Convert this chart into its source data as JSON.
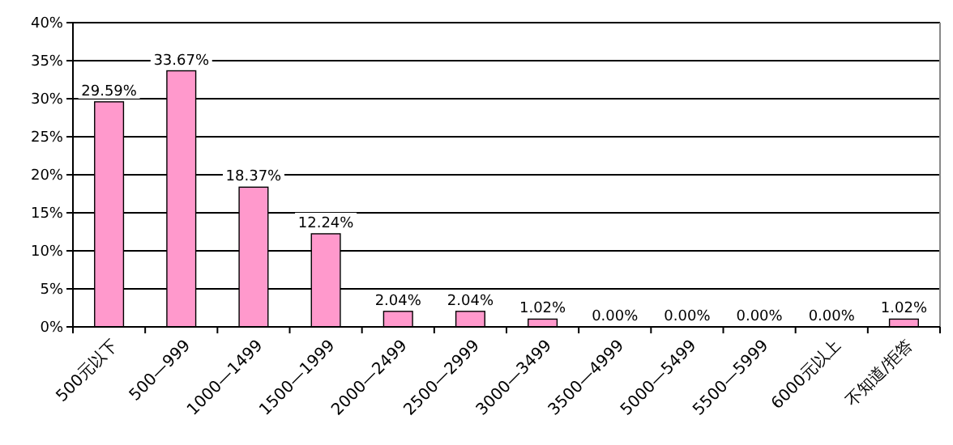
{
  "chart_data": {
    "type": "bar",
    "categories": [
      "500元以下",
      "500—999",
      "1000—1499",
      "1500—1999",
      "2000—2499",
      "2500—2999",
      "3000—3499",
      "3500—4999",
      "5000—5499",
      "5500—5999",
      "6000元以上",
      "不知道/拒答"
    ],
    "values": [
      29.59,
      33.67,
      18.37,
      12.24,
      2.04,
      2.04,
      1.02,
      0,
      0,
      0,
      0,
      1.02
    ],
    "value_labels": [
      "29.59%",
      "33.67%",
      "18.37%",
      "12.24%",
      "2.04%",
      "2.04%",
      "1.02%",
      "0.00%",
      "0.00%",
      "0.00%",
      "0.00%",
      "1.02%"
    ],
    "color": "#ff99cc",
    "ylim": [
      0,
      40
    ],
    "yticks": [
      {
        "value": 0,
        "label": "0%"
      },
      {
        "value": 5,
        "label": "5%"
      },
      {
        "value": 10,
        "label": "10%"
      },
      {
        "value": 15,
        "label": "15%"
      },
      {
        "value": 20,
        "label": "20%"
      },
      {
        "value": 25,
        "label": "25%"
      },
      {
        "value": 30,
        "label": "30%"
      },
      {
        "value": 35,
        "label": "35%"
      },
      {
        "value": 40,
        "label": "40%"
      }
    ],
    "grid": "y"
  }
}
